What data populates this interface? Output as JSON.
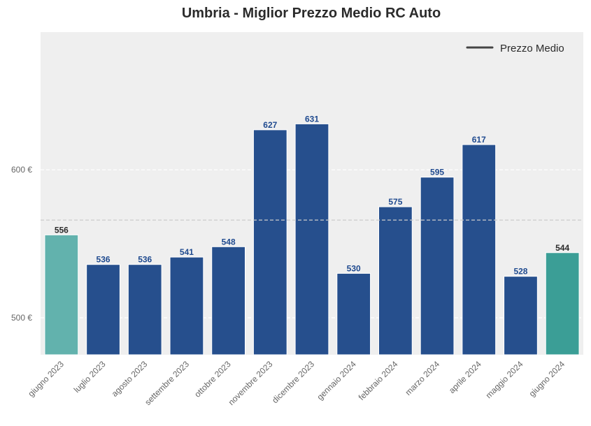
{
  "chart_data": {
    "type": "bar",
    "title": "Umbria - Miglior Prezzo Medio RC Auto",
    "xlabel": "",
    "ylabel": "",
    "categories": [
      "giugno 2023",
      "luglio 2023",
      "agosto 2023",
      "settembre 2023",
      "ottobre 2023",
      "novembre 2023",
      "dicembre 2023",
      "gennaio 2024",
      "febbraio 2024",
      "marzo 2024",
      "aprile 2024",
      "maggio 2024",
      "giugno 2024"
    ],
    "values": [
      556,
      536,
      536,
      541,
      548,
      627,
      631,
      530,
      575,
      595,
      617,
      528,
      544
    ],
    "value_labels": [
      "556",
      "536",
      "536",
      "541",
      "548",
      "627",
      "631",
      "530",
      "575",
      "595",
      "617",
      "528",
      "544"
    ],
    "bar_colors": [
      "#62b2ad",
      "#264f8d",
      "#264f8d",
      "#264f8d",
      "#264f8d",
      "#264f8d",
      "#264f8d",
      "#264f8d",
      "#264f8d",
      "#264f8d",
      "#264f8d",
      "#264f8d",
      "#3b9e96"
    ],
    "label_colors": [
      "#2b2b2b",
      "#1f4a8f",
      "#1f4a8f",
      "#1f4a8f",
      "#1f4a8f",
      "#1f4a8f",
      "#1f4a8f",
      "#1f4a8f",
      "#1f4a8f",
      "#1f4a8f",
      "#1f4a8f",
      "#1f4a8f",
      "#2b2b2b"
    ],
    "ylim": [
      475,
      693
    ],
    "yticks": [
      500,
      600
    ],
    "ytick_labels": [
      "500 €",
      "600 €"
    ],
    "mean_line": {
      "value": 566,
      "label": "Prezzo Medio",
      "color": "#444444"
    },
    "legend": {
      "position": "top-right",
      "entries": [
        "Prezzo Medio"
      ]
    },
    "grid": true,
    "colors": {
      "plot_bg": "#efefef",
      "grid": "#ffffff",
      "tick_text": "#666666"
    }
  }
}
